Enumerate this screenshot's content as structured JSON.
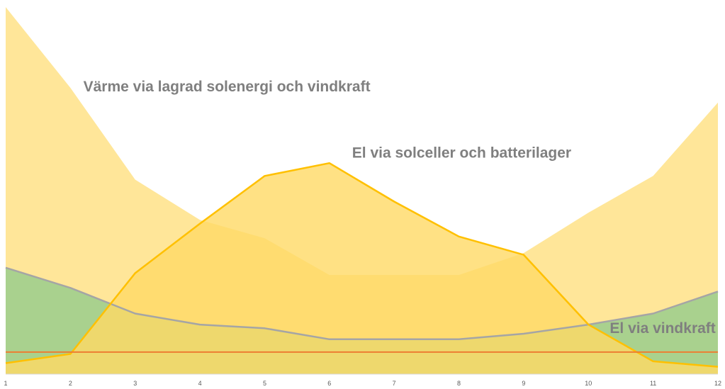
{
  "chart_data": {
    "type": "area",
    "categories": [
      "1",
      "2",
      "3",
      "4",
      "5",
      "6",
      "7",
      "8",
      "9",
      "10",
      "11",
      "12"
    ],
    "ylim": [
      0,
      100
    ],
    "grid": false,
    "series": [
      {
        "key": "heat",
        "kind": "area",
        "values": [
          100,
          78,
          53,
          42,
          37,
          27,
          27,
          27,
          33,
          44,
          54,
          74
        ],
        "color": "#FFE699"
      },
      {
        "key": "wind",
        "kind": "area-with-line",
        "values": [
          29,
          23.5,
          16.5,
          13.5,
          12.5,
          9.5,
          9.5,
          9.5,
          11,
          13.5,
          16.5,
          22.5
        ],
        "color": "#A9D18E",
        "line_color": "#A5A5A5"
      },
      {
        "key": "solar",
        "kind": "area-with-line",
        "values": [
          3,
          5.5,
          27.5,
          41,
          54,
          57.5,
          47,
          37.5,
          32.5,
          13.5,
          3.5,
          2
        ],
        "color": "#FFD965",
        "fill_opacity": 0.8,
        "line_color": "#FFC000"
      },
      {
        "key": "base",
        "kind": "line",
        "values": [
          6,
          6,
          6,
          6,
          6,
          6,
          6,
          6,
          6,
          6,
          6,
          6
        ],
        "color": "#ED7D31"
      }
    ],
    "annotations": [
      {
        "text": "Värme via lagrad solenergi och vindkraft",
        "x": 2.2,
        "y": 77
      },
      {
        "text": "El via solceller och batterilager",
        "x": 6.35,
        "y": 59
      },
      {
        "text": "El via vindkraft",
        "x": 10.33,
        "y": 11.2
      }
    ]
  }
}
